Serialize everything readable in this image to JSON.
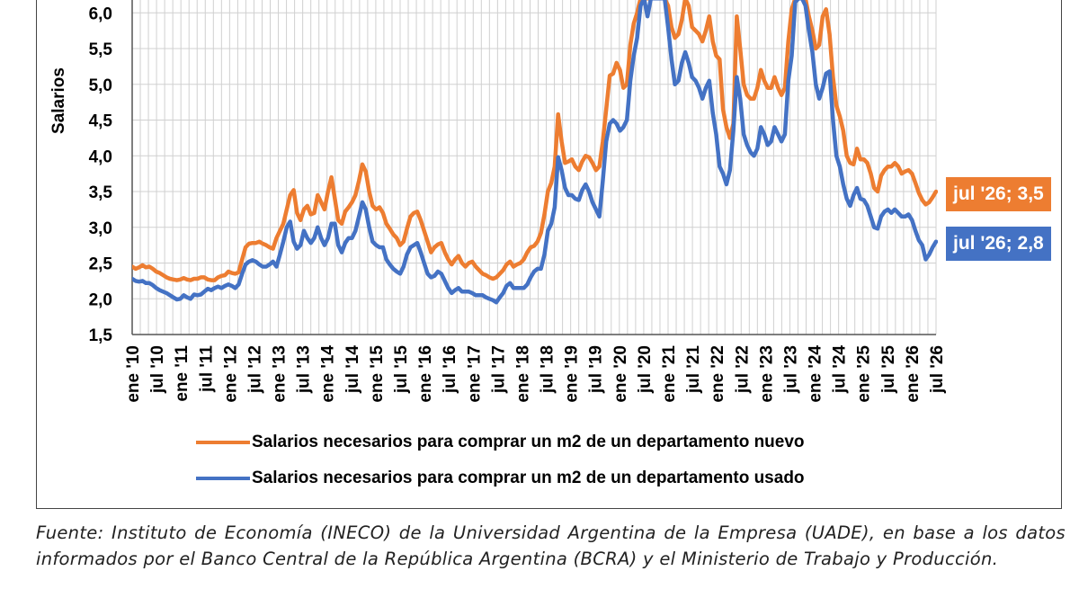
{
  "chart_data": {
    "type": "line",
    "title": "",
    "ylabel": "Salarios",
    "xlabel": "",
    "ylim": [
      1.5,
      6.2
    ],
    "yticks": [
      "6,0",
      "5,5",
      "5,0",
      "4,5",
      "4,0",
      "3,5",
      "3,0",
      "2,5",
      "2,0",
      "1,5"
    ],
    "grid": true,
    "legend_position": "bottom",
    "x_tick_labels": [
      "ene '10",
      "jul '10",
      "ene '11",
      "jul '11",
      "ene '12",
      "jul '12",
      "ene '13",
      "jul '13",
      "ene '14",
      "jul '14",
      "ene '15",
      "jul '15",
      "ene '16",
      "jul '16",
      "ene '17",
      "jul '17",
      "ene '18",
      "jul '18",
      "ene '19",
      "jul '19",
      "ene '20",
      "jul '20",
      "ene '21",
      "jul '21",
      "ene '22",
      "jul '22",
      "ene '23",
      "jul '23",
      "ene '24",
      "jul '24",
      "ene '25",
      "jul '25",
      "ene '26",
      "jul '26"
    ],
    "series": [
      {
        "name": "Salarios necesarios para comprar un m2 de un departamento nuevo",
        "color": "#ED7D31",
        "values": [
          2.45,
          2.42,
          2.44,
          2.47,
          2.44,
          2.45,
          2.42,
          2.38,
          2.36,
          2.33,
          2.3,
          2.28,
          2.27,
          2.26,
          2.27,
          2.29,
          2.27,
          2.26,
          2.28,
          2.28,
          2.3,
          2.3,
          2.27,
          2.26,
          2.26,
          2.3,
          2.32,
          2.33,
          2.38,
          2.36,
          2.35,
          2.37,
          2.55,
          2.72,
          2.77,
          2.78,
          2.78,
          2.8,
          2.77,
          2.75,
          2.72,
          2.7,
          2.85,
          2.95,
          3.05,
          3.25,
          3.45,
          3.52,
          3.2,
          3.1,
          3.25,
          3.3,
          3.18,
          3.2,
          3.45,
          3.35,
          3.25,
          3.5,
          3.7,
          3.4,
          3.1,
          3.05,
          3.22,
          3.28,
          3.35,
          3.45,
          3.65,
          3.88,
          3.78,
          3.5,
          3.3,
          3.25,
          3.28,
          3.2,
          3.05,
          2.98,
          2.9,
          2.85,
          2.75,
          2.8,
          2.98,
          3.15,
          3.2,
          3.22,
          3.1,
          2.95,
          2.8,
          2.65,
          2.72,
          2.76,
          2.78,
          2.65,
          2.55,
          2.48,
          2.55,
          2.6,
          2.5,
          2.45,
          2.5,
          2.52,
          2.45,
          2.4,
          2.35,
          2.33,
          2.3,
          2.28,
          2.3,
          2.35,
          2.4,
          2.48,
          2.52,
          2.45,
          2.48,
          2.5,
          2.55,
          2.65,
          2.72,
          2.74,
          2.8,
          2.92,
          3.18,
          3.5,
          3.62,
          3.85,
          4.58,
          4.2,
          3.9,
          3.92,
          3.95,
          3.85,
          3.8,
          3.92,
          4.0,
          3.98,
          3.9,
          3.8,
          3.85,
          4.2,
          4.65,
          5.12,
          5.15,
          5.3,
          5.2,
          4.95,
          5.0,
          5.55,
          5.85,
          6.0,
          6.2,
          6.2,
          6.2,
          6.2,
          6.2,
          6.2,
          6.2,
          6.2,
          6.1,
          5.8,
          5.65,
          5.7,
          5.9,
          6.2,
          6.1,
          5.8,
          5.75,
          5.7,
          5.6,
          5.75,
          5.95,
          5.6,
          5.4,
          5.35,
          4.65,
          4.4,
          4.25,
          4.45,
          5.95,
          5.5,
          5.0,
          4.85,
          4.8,
          4.8,
          4.95,
          5.2,
          5.05,
          4.95,
          4.95,
          5.1,
          4.95,
          4.85,
          4.95,
          5.6,
          6.05,
          6.2,
          6.2,
          6.2,
          6.2,
          5.95,
          5.75,
          5.5,
          5.55,
          5.95,
          6.05,
          5.7,
          5.1,
          4.7,
          4.55,
          4.35,
          4.0,
          3.9,
          3.88,
          4.1,
          3.95,
          3.95,
          3.9,
          3.75,
          3.55,
          3.5,
          3.72,
          3.8,
          3.85,
          3.85,
          3.9,
          3.85,
          3.75,
          3.78,
          3.8,
          3.75,
          3.62,
          3.48,
          3.38,
          3.32,
          3.35,
          3.42,
          3.5
        ]
      },
      {
        "name": "Salarios necesarios para comprar un m2 de un departamento usado",
        "color": "#4472C4",
        "values": [
          2.28,
          2.25,
          2.24,
          2.25,
          2.22,
          2.22,
          2.19,
          2.15,
          2.12,
          2.1,
          2.08,
          2.05,
          2.02,
          1.99,
          2.0,
          2.05,
          2.02,
          2.0,
          2.06,
          2.05,
          2.06,
          2.1,
          2.14,
          2.12,
          2.15,
          2.17,
          2.15,
          2.18,
          2.2,
          2.18,
          2.15,
          2.2,
          2.35,
          2.48,
          2.52,
          2.54,
          2.52,
          2.48,
          2.45,
          2.45,
          2.48,
          2.52,
          2.45,
          2.62,
          2.8,
          3.0,
          3.08,
          2.8,
          2.7,
          2.75,
          2.95,
          2.85,
          2.78,
          2.85,
          3.0,
          2.85,
          2.75,
          2.85,
          3.05,
          3.05,
          2.75,
          2.65,
          2.78,
          2.85,
          2.85,
          2.95,
          3.15,
          3.35,
          3.25,
          3.0,
          2.8,
          2.75,
          2.72,
          2.72,
          2.55,
          2.48,
          2.42,
          2.38,
          2.35,
          2.45,
          2.62,
          2.72,
          2.75,
          2.78,
          2.65,
          2.5,
          2.35,
          2.3,
          2.32,
          2.38,
          2.35,
          2.25,
          2.15,
          2.08,
          2.12,
          2.15,
          2.1,
          2.1,
          2.1,
          2.08,
          2.05,
          2.05,
          2.05,
          2.02,
          2.0,
          1.98,
          1.95,
          2.02,
          2.08,
          2.18,
          2.22,
          2.15,
          2.15,
          2.15,
          2.15,
          2.2,
          2.3,
          2.38,
          2.42,
          2.42,
          2.62,
          2.95,
          3.05,
          3.28,
          3.98,
          3.8,
          3.55,
          3.45,
          3.45,
          3.4,
          3.38,
          3.52,
          3.6,
          3.5,
          3.35,
          3.25,
          3.15,
          3.65,
          4.2,
          4.45,
          4.5,
          4.45,
          4.35,
          4.4,
          4.5,
          5.05,
          5.4,
          5.65,
          6.1,
          6.2,
          5.95,
          6.2,
          6.2,
          6.2,
          6.2,
          6.2,
          5.8,
          5.35,
          5.0,
          5.05,
          5.3,
          5.45,
          5.3,
          5.1,
          5.05,
          4.95,
          4.8,
          4.95,
          5.05,
          4.6,
          4.3,
          3.85,
          3.75,
          3.6,
          3.8,
          4.35,
          5.1,
          4.8,
          4.3,
          4.15,
          4.05,
          4.0,
          4.1,
          4.4,
          4.3,
          4.15,
          4.2,
          4.4,
          4.3,
          4.2,
          4.3,
          5.05,
          5.4,
          6.15,
          6.2,
          6.2,
          6.1,
          5.75,
          5.45,
          5.0,
          4.8,
          4.95,
          5.15,
          5.18,
          4.5,
          4.0,
          3.85,
          3.6,
          3.4,
          3.3,
          3.45,
          3.55,
          3.4,
          3.38,
          3.3,
          3.15,
          3.0,
          2.98,
          3.15,
          3.22,
          3.25,
          3.2,
          3.25,
          3.2,
          3.15,
          3.15,
          3.18,
          3.1,
          2.95,
          2.82,
          2.75,
          2.55,
          2.62,
          2.72,
          2.8
        ]
      }
    ]
  },
  "end_labels": {
    "nuevo": "jul '26; 3,5",
    "usado": "jul '26; 2,8"
  },
  "source_text": "Fuente: Instituto de Economía (INECO) de la Universidad Argentina de la Empresa (UADE), en base a los datos informados por el Banco Central de la República Argentina (BCRA) y el Ministerio de Trabajo y Producción."
}
